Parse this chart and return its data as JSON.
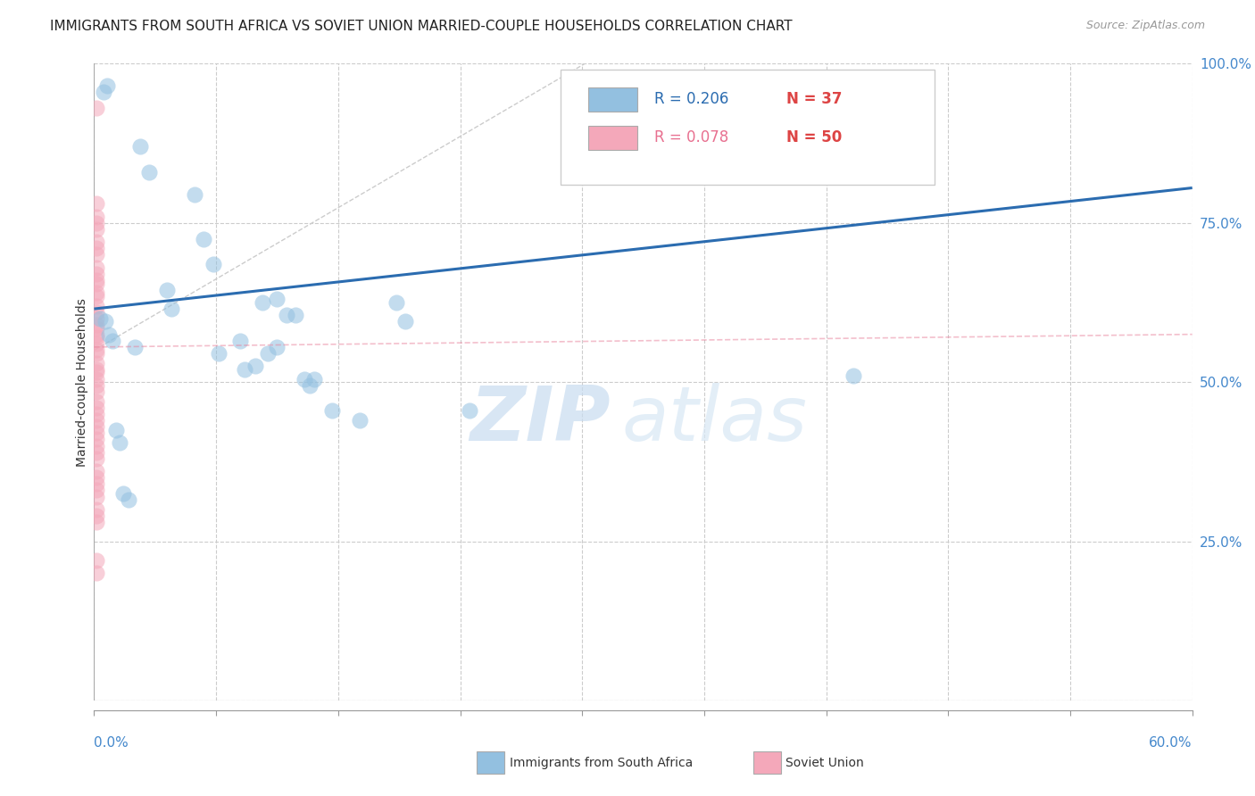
{
  "title": "IMMIGRANTS FROM SOUTH AFRICA VS SOVIET UNION MARRIED-COUPLE HOUSEHOLDS CORRELATION CHART",
  "source": "Source: ZipAtlas.com",
  "ylabel": "Married-couple Households",
  "xlim": [
    0.0,
    0.6
  ],
  "ylim": [
    0.0,
    1.0
  ],
  "yticks": [
    0.0,
    0.25,
    0.5,
    0.75,
    1.0
  ],
  "ytick_labels": [
    "",
    "25.0%",
    "50.0%",
    "75.0%",
    "100.0%"
  ],
  "blue_scatter_x": [
    0.005,
    0.007,
    0.025,
    0.03,
    0.055,
    0.06,
    0.065,
    0.04,
    0.042,
    0.068,
    0.08,
    0.082,
    0.088,
    0.095,
    0.1,
    0.092,
    0.1,
    0.105,
    0.11,
    0.115,
    0.118,
    0.12,
    0.13,
    0.145,
    0.165,
    0.17,
    0.205,
    0.415,
    0.003,
    0.006,
    0.008,
    0.01,
    0.012,
    0.014,
    0.016,
    0.019,
    0.022
  ],
  "blue_scatter_y": [
    0.955,
    0.965,
    0.87,
    0.83,
    0.795,
    0.725,
    0.685,
    0.645,
    0.615,
    0.545,
    0.565,
    0.52,
    0.525,
    0.545,
    0.555,
    0.625,
    0.63,
    0.605,
    0.605,
    0.505,
    0.495,
    0.505,
    0.455,
    0.44,
    0.625,
    0.595,
    0.455,
    0.51,
    0.6,
    0.595,
    0.575,
    0.565,
    0.425,
    0.405,
    0.325,
    0.315,
    0.555
  ],
  "pink_scatter_x": [
    0.001,
    0.001,
    0.001,
    0.001,
    0.001,
    0.001,
    0.001,
    0.001,
    0.001,
    0.001,
    0.001,
    0.001,
    0.001,
    0.001,
    0.001,
    0.001,
    0.001,
    0.001,
    0.001,
    0.001,
    0.001,
    0.001,
    0.001,
    0.001,
    0.001,
    0.001,
    0.001,
    0.001,
    0.001,
    0.001,
    0.001,
    0.001,
    0.001,
    0.001,
    0.001,
    0.001,
    0.001,
    0.001,
    0.001,
    0.001,
    0.001,
    0.001,
    0.001,
    0.001,
    0.001,
    0.001,
    0.001,
    0.001,
    0.001,
    0.001
  ],
  "pink_scatter_y": [
    0.93,
    0.78,
    0.76,
    0.75,
    0.74,
    0.72,
    0.71,
    0.7,
    0.68,
    0.67,
    0.66,
    0.655,
    0.64,
    0.635,
    0.62,
    0.61,
    0.6,
    0.59,
    0.585,
    0.575,
    0.57,
    0.56,
    0.55,
    0.545,
    0.53,
    0.52,
    0.515,
    0.505,
    0.495,
    0.485,
    0.47,
    0.46,
    0.45,
    0.44,
    0.43,
    0.42,
    0.41,
    0.4,
    0.39,
    0.38,
    0.36,
    0.35,
    0.34,
    0.33,
    0.32,
    0.3,
    0.29,
    0.28,
    0.22,
    0.2
  ],
  "blue_line_x": [
    0.0,
    0.6
  ],
  "blue_line_y": [
    0.615,
    0.805
  ],
  "pink_line_x": [
    0.0,
    0.6
  ],
  "pink_line_y": [
    0.555,
    0.575
  ],
  "ref_line_x": [
    0.0,
    0.28
  ],
  "ref_line_y": [
    0.55,
    1.02
  ],
  "scatter_size": 170,
  "scatter_alpha": 0.55,
  "blue_color": "#93C0E0",
  "pink_color": "#F4A8BA",
  "blue_line_color": "#2B6CB0",
  "pink_line_color": "#E8809A",
  "ref_line_color": "#cccccc",
  "grid_color": "#cccccc",
  "background_color": "#ffffff",
  "watermark_zip": "ZIP",
  "watermark_atlas": "atlas",
  "title_fontsize": 11,
  "source_fontsize": 9,
  "legend_r1": "R = 0.206",
  "legend_n1": "N = 37",
  "legend_r2": "R = 0.078",
  "legend_n2": "N = 50",
  "legend_r_color": "#2B6CB0",
  "legend_n_color": "#DD4444",
  "legend_r2_color": "#E87090",
  "legend_n2_color": "#DD4444"
}
